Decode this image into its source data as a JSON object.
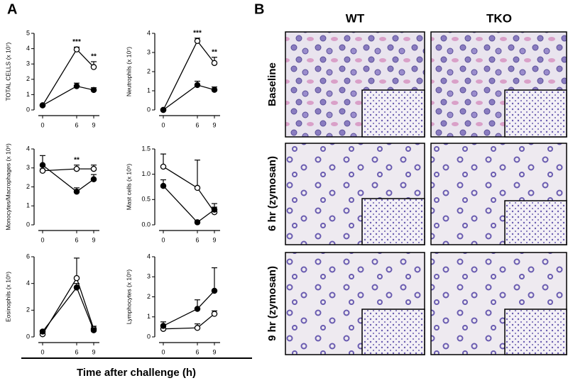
{
  "panel_labels": [
    "A",
    "B"
  ],
  "shared_xlabel": "Time after challenge (h)",
  "micrographs": {
    "columns": [
      "WT",
      "TKO"
    ],
    "rows": [
      "Baseline",
      "6 hr (zymosan)",
      "9 hr (zymosan)"
    ]
  },
  "chart_data": [
    {
      "type": "line",
      "ylabel": "TOTAL CELLS (x 10⁷)",
      "x": [
        0,
        6,
        9
      ],
      "xlim": [
        -1.5,
        10
      ],
      "xticks": [
        0,
        6,
        9
      ],
      "ylim": [
        0,
        5
      ],
      "yticks": [
        0,
        1,
        2,
        3,
        4,
        5
      ],
      "series": [
        {
          "marker": "open",
          "color": "#000000",
          "values": [
            0.3,
            3.95,
            2.8
          ],
          "errors": [
            0.05,
            0.15,
            0.35
          ]
        },
        {
          "marker": "filled",
          "color": "#000000",
          "values": [
            0.3,
            1.55,
            1.3
          ],
          "errors": [
            0.05,
            0.2,
            0.15
          ]
        }
      ],
      "annotations": [
        {
          "text": "***",
          "x": 6
        },
        {
          "text": "**",
          "x": 9
        }
      ]
    },
    {
      "type": "line",
      "ylabel": "Neutrophils (x 10⁷)",
      "x": [
        0,
        6,
        9
      ],
      "xlim": [
        -1.5,
        10
      ],
      "xticks": [
        0,
        6,
        9
      ],
      "ylim": [
        0,
        4
      ],
      "yticks": [
        0,
        1,
        2,
        3,
        4
      ],
      "series": [
        {
          "marker": "open",
          "color": "#000000",
          "values": [
            0,
            3.6,
            2.45
          ],
          "errors": [
            0,
            0.15,
            0.3
          ]
        },
        {
          "marker": "filled",
          "color": "#000000",
          "values": [
            0,
            1.3,
            1.05
          ],
          "errors": [
            0,
            0.2,
            0.15
          ]
        }
      ],
      "annotations": [
        {
          "text": "***",
          "x": 6
        },
        {
          "text": "**",
          "x": 9
        }
      ]
    },
    {
      "type": "line",
      "ylabel": "Monocytes/Macrophages (x 10⁶)",
      "x": [
        0,
        6,
        9
      ],
      "xlim": [
        -1.5,
        10
      ],
      "xticks": [
        0,
        6,
        9
      ],
      "ylim": [
        0,
        4
      ],
      "yticks": [
        0,
        1,
        2,
        3,
        4
      ],
      "series": [
        {
          "marker": "open",
          "color": "#000000",
          "values": [
            2.85,
            2.95,
            2.95
          ],
          "errors": [
            0.1,
            0.2,
            0.2
          ]
        },
        {
          "marker": "filled",
          "color": "#000000",
          "values": [
            3.15,
            1.75,
            2.4
          ],
          "errors": [
            0.5,
            0.2,
            0.25
          ]
        }
      ],
      "annotations": [
        {
          "text": "**",
          "x": 6
        }
      ]
    },
    {
      "type": "line",
      "ylabel": "Mast cells (x 10⁵)",
      "x": [
        0,
        6,
        9
      ],
      "xlim": [
        -1.5,
        10
      ],
      "xticks": [
        0,
        6,
        9
      ],
      "ylim": [
        0,
        1.5
      ],
      "yticks": [
        {
          "value": 0,
          "label": "0.0"
        },
        0.5,
        {
          "value": 1,
          "label": "1.0"
        },
        1.5
      ],
      "series": [
        {
          "marker": "open",
          "color": "#000000",
          "values": [
            1.15,
            0.73,
            0.25
          ],
          "errors": [
            0.25,
            0.55,
            0.1
          ]
        },
        {
          "marker": "filled",
          "color": "#000000",
          "values": [
            0.77,
            0.05,
            0.3
          ],
          "errors": [
            0.12,
            0.03,
            0.12
          ]
        }
      ],
      "annotations": []
    },
    {
      "type": "line",
      "ylabel": "Eosinophils (x 10⁵)",
      "x": [
        0,
        6,
        9
      ],
      "xlim": [
        -1.5,
        10
      ],
      "xticks": [
        0,
        6,
        9
      ],
      "ylim": [
        0,
        6
      ],
      "yticks": [
        0,
        2,
        4,
        6
      ],
      "series": [
        {
          "marker": "open",
          "color": "#000000",
          "values": [
            0.2,
            4.4,
            0.6
          ],
          "errors": [
            0.1,
            1.5,
            0.2
          ]
        },
        {
          "marker": "filled",
          "color": "#000000",
          "values": [
            0.4,
            3.7,
            0.5
          ],
          "errors": [
            0.1,
            0.3,
            0.1
          ]
        }
      ],
      "annotations": []
    },
    {
      "type": "line",
      "ylabel": "Lymphocytes (x 10⁵)",
      "x": [
        0,
        6,
        9
      ],
      "xlim": [
        -1.5,
        10
      ],
      "xticks": [
        0,
        6,
        9
      ],
      "ylim": [
        0,
        4
      ],
      "yticks": [
        0,
        1,
        2,
        3,
        4
      ],
      "series": [
        {
          "marker": "open",
          "color": "#000000",
          "values": [
            0.4,
            0.45,
            1.15
          ],
          "errors": [
            0.15,
            0.2,
            0.15
          ]
        },
        {
          "marker": "filled",
          "color": "#000000",
          "values": [
            0.55,
            1.4,
            2.3
          ],
          "errors": [
            0.2,
            0.45,
            1.15
          ]
        }
      ],
      "annotations": []
    }
  ]
}
